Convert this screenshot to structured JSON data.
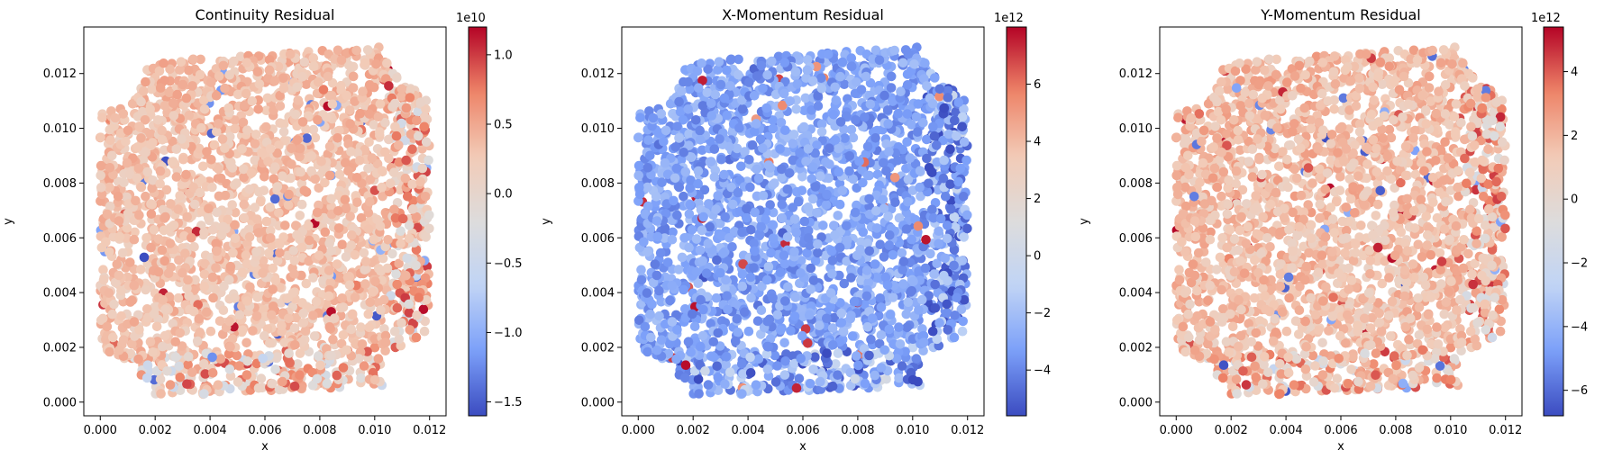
{
  "figure": {
    "colormap": "coolwarm",
    "colormap_stops": [
      "#3b4cc0",
      "#7b9ff9",
      "#c0d4f5",
      "#dddcdc",
      "#f2cbb7",
      "#ee8468",
      "#b40426"
    ]
  },
  "chart_data": [
    {
      "type": "scatter",
      "title": "Continuity Residual",
      "xlabel": "x",
      "ylabel": "y",
      "xlim": [
        -0.0006,
        0.0126
      ],
      "ylim": [
        -0.0005,
        0.0137
      ],
      "xticks": [
        0.0,
        0.002,
        0.004,
        0.006,
        0.008,
        0.01,
        0.012
      ],
      "xtick_labels": [
        "0.000",
        "0.002",
        "0.004",
        "0.006",
        "0.008",
        "0.010",
        "0.012"
      ],
      "yticks": [
        0.0,
        0.002,
        0.004,
        0.006,
        0.008,
        0.01,
        0.012
      ],
      "ytick_labels": [
        "0.000",
        "0.002",
        "0.004",
        "0.006",
        "0.008",
        "0.010",
        "0.012"
      ],
      "colorbar": {
        "range": [
          -16000000000.0,
          12000000000.0
        ],
        "ticks": [
          -1.5,
          -1.0,
          -0.5,
          0.0,
          0.5,
          1.0
        ],
        "tick_labels": [
          "−1.5",
          "−1.0",
          "−0.5",
          "0.0",
          "0.5",
          "1.0"
        ],
        "tick_unit": 10000000000.0,
        "offset_label": "1e10"
      },
      "field": {
        "base": 0.28,
        "gradient": -0.04,
        "noise": 0.18,
        "extreme_fraction": 0.02
      }
    },
    {
      "type": "scatter",
      "title": "X-Momentum Residual",
      "xlabel": "x",
      "ylabel": "y",
      "xlim": [
        -0.0006,
        0.0126
      ],
      "ylim": [
        -0.0005,
        0.0137
      ],
      "xticks": [
        0.0,
        0.002,
        0.004,
        0.006,
        0.008,
        0.01,
        0.012
      ],
      "xtick_labels": [
        "0.000",
        "0.002",
        "0.004",
        "0.006",
        "0.008",
        "0.010",
        "0.012"
      ],
      "yticks": [
        0.0,
        0.002,
        0.004,
        0.006,
        0.008,
        0.01,
        0.012
      ],
      "ytick_labels": [
        "0.000",
        "0.002",
        "0.004",
        "0.006",
        "0.008",
        "0.010",
        "0.012"
      ],
      "colorbar": {
        "range": [
          -5600000000000.0,
          8000000000000.0
        ],
        "ticks": [
          -4,
          -2,
          0,
          2,
          4,
          6
        ],
        "tick_labels": [
          "−4",
          "−2",
          "0",
          "2",
          "4",
          "6"
        ],
        "tick_unit": 1000000000000.0,
        "offset_label": "1e12"
      },
      "field": {
        "base": -0.55,
        "gradient": 0.0,
        "noise": 0.22,
        "extreme_fraction": 0.02
      }
    },
    {
      "type": "scatter",
      "title": "Y-Momentum Residual",
      "xlabel": "x",
      "ylabel": "y",
      "xlim": [
        -0.0006,
        0.0126
      ],
      "ylim": [
        -0.0005,
        0.0137
      ],
      "xticks": [
        0.0,
        0.002,
        0.004,
        0.006,
        0.008,
        0.01,
        0.012
      ],
      "xtick_labels": [
        "0.000",
        "0.002",
        "0.004",
        "0.006",
        "0.008",
        "0.010",
        "0.012"
      ],
      "yticks": [
        0.0,
        0.002,
        0.004,
        0.006,
        0.008,
        0.01,
        0.012
      ],
      "ytick_labels": [
        "0.000",
        "0.002",
        "0.004",
        "0.006",
        "0.008",
        "0.010",
        "0.012"
      ],
      "colorbar": {
        "range": [
          -6800000000000.0,
          5400000000000.0
        ],
        "ticks": [
          -6,
          -4,
          -2,
          0,
          2,
          4
        ],
        "tick_labels": [
          "−6",
          "−4",
          "−2",
          "0",
          "2",
          "4"
        ],
        "tick_unit": 1000000000000.0,
        "offset_label": "1e12"
      },
      "field": {
        "base": 0.32,
        "gradient": -0.05,
        "noise": 0.2,
        "extreme_fraction": 0.025
      }
    }
  ]
}
